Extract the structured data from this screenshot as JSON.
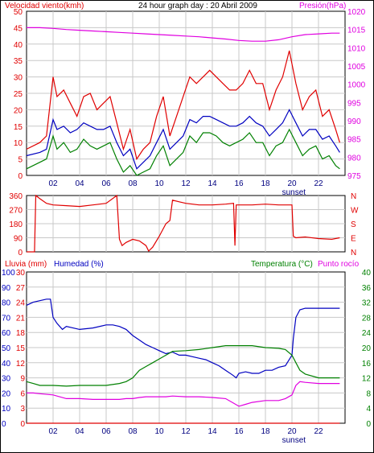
{
  "chart_data": [
    {
      "type": "line",
      "title": "24 hour graph day : 20 Abril 2009",
      "ylabel_left": "Velocidad viento(kmh)",
      "ylabel_right": "Presión(hPa)",
      "x_tick_labels": [
        "02",
        "04",
        "06",
        "08",
        "10",
        "12",
        "14",
        "16",
        "18",
        "20",
        "22"
      ],
      "x_ticks": [
        2,
        4,
        6,
        8,
        10,
        12,
        14,
        16,
        18,
        20,
        22
      ],
      "xlim": [
        0,
        24
      ],
      "ylim_left": [
        0,
        50
      ],
      "ylim_right": [
        975,
        1020
      ],
      "y_tick_labels_left": [
        "0",
        "5",
        "10",
        "15",
        "20",
        "25",
        "30",
        "35",
        "40",
        "45",
        "50"
      ],
      "y_tick_labels_right": [
        "975",
        "980",
        "985",
        "990",
        "995",
        "1000",
        "1005",
        "1010",
        "1015",
        "1020"
      ],
      "annotation": "sunset",
      "sunset_x": 19.9,
      "grid": true,
      "colors": {
        "gust": "#e00000",
        "avg": "#0000c0",
        "min": "#008000",
        "pressure": "#e000e0"
      },
      "series": [
        {
          "axis": "left",
          "color": "#e00000",
          "x": [
            0,
            1,
            1.5,
            2,
            2.3,
            2.8,
            3.3,
            3.8,
            4.3,
            4.8,
            5.3,
            5.8,
            6.3,
            6.8,
            7.3,
            7.8,
            8.3,
            8.8,
            9.3,
            9.8,
            10.3,
            10.8,
            11.3,
            11.8,
            12.3,
            12.8,
            13.3,
            13.8,
            14.3,
            14.8,
            15.3,
            15.8,
            16.3,
            16.8,
            17.3,
            17.8,
            18.3,
            18.8,
            19.3,
            19.8,
            20.3,
            20.8,
            21.3,
            21.8,
            22.3,
            22.8,
            23.3,
            23.6
          ],
          "values": [
            8,
            10,
            12,
            30,
            24,
            26,
            22,
            18,
            24,
            25,
            20,
            22,
            24,
            16,
            8,
            14,
            5,
            8,
            10,
            18,
            24,
            12,
            18,
            24,
            30,
            28,
            30,
            32,
            30,
            28,
            26,
            26,
            28,
            32,
            28,
            28,
            20,
            26,
            30,
            38,
            28,
            20,
            24,
            26,
            18,
            20,
            14,
            10
          ]
        },
        {
          "axis": "left",
          "color": "#0000c0",
          "x": [
            0,
            1,
            1.5,
            2,
            2.3,
            2.8,
            3.3,
            3.8,
            4.3,
            4.8,
            5.3,
            5.8,
            6.3,
            6.8,
            7.3,
            7.8,
            8.3,
            8.8,
            9.3,
            9.8,
            10.3,
            10.8,
            11.3,
            11.8,
            12.3,
            12.8,
            13.3,
            13.8,
            14.3,
            14.8,
            15.3,
            15.8,
            16.3,
            16.8,
            17.3,
            17.8,
            18.3,
            18.8,
            19.3,
            19.8,
            20.3,
            20.8,
            21.3,
            21.8,
            22.3,
            22.8,
            23.3,
            23.6
          ],
          "values": [
            6,
            7,
            8,
            17,
            14,
            15,
            13,
            14,
            16,
            15,
            14,
            14,
            15,
            10,
            6,
            8,
            2,
            4,
            6,
            10,
            14,
            8,
            10,
            12,
            17,
            16,
            18,
            18,
            17,
            16,
            15,
            15,
            16,
            18,
            16,
            15,
            12,
            14,
            16,
            20,
            16,
            12,
            14,
            14,
            11,
            12,
            9,
            7
          ]
        },
        {
          "axis": "left",
          "color": "#008000",
          "x": [
            0,
            1,
            1.5,
            2,
            2.3,
            2.8,
            3.3,
            3.8,
            4.3,
            4.8,
            5.3,
            5.8,
            6.3,
            6.8,
            7.3,
            7.8,
            8.3,
            8.8,
            9.3,
            9.8,
            10.3,
            10.8,
            11.3,
            11.8,
            12.3,
            12.8,
            13.3,
            13.8,
            14.3,
            14.8,
            15.3,
            15.8,
            16.3,
            16.8,
            17.3,
            17.8,
            18.3,
            18.8,
            19.3,
            19.8,
            20.3,
            20.8,
            21.3,
            21.8,
            22.3,
            22.8,
            23.3,
            23.6
          ],
          "values": [
            2,
            4,
            5,
            12,
            8,
            10,
            7,
            8,
            11,
            9,
            8,
            9,
            10,
            5,
            1,
            3,
            0,
            1,
            2,
            6,
            9,
            3,
            5,
            7,
            12,
            10,
            13,
            13,
            12,
            10,
            9,
            10,
            11,
            13,
            10,
            10,
            6,
            9,
            10,
            14,
            10,
            6,
            8,
            9,
            5,
            6,
            3,
            2
          ]
        },
        {
          "axis": "right",
          "color": "#e000e0",
          "x": [
            0,
            1,
            2,
            3,
            4,
            5,
            6,
            7,
            8,
            9,
            10,
            11,
            12,
            13,
            14,
            15,
            16,
            17,
            18,
            19,
            20,
            21,
            22,
            23,
            23.6
          ],
          "values": [
            1015.5,
            1015.5,
            1015.3,
            1015,
            1014.8,
            1014.6,
            1014.4,
            1014.2,
            1014,
            1013.8,
            1013.6,
            1013.4,
            1013.2,
            1013,
            1012.7,
            1012.4,
            1012,
            1011.8,
            1011.8,
            1012.2,
            1013,
            1013.6,
            1013.8,
            1014,
            1014
          ]
        }
      ]
    },
    {
      "type": "line",
      "ylabel_right": "N W S E N",
      "y_tick_labels_left": [
        "0",
        "90",
        "180",
        "270",
        "360"
      ],
      "y_tick_labels_right": [
        "N",
        "E",
        "S",
        "W",
        "N"
      ],
      "ylim": [
        0,
        360
      ],
      "xlim": [
        0,
        24
      ],
      "grid": true,
      "series": [
        {
          "color": "#e00000",
          "x": [
            0,
            0.6,
            0.7,
            1,
            1.5,
            2,
            3,
            4,
            5,
            6,
            6.8,
            7,
            7.2,
            7.5,
            8,
            8.5,
            9,
            9.2,
            9.5,
            10,
            10.5,
            10.8,
            11,
            11.5,
            12,
            13,
            14,
            15,
            15.6,
            15.7,
            15.8,
            16,
            17,
            18,
            19,
            20,
            20.1,
            20.3,
            21,
            22,
            23,
            23.6
          ],
          "values": [
            0,
            0,
            360,
            340,
            310,
            300,
            295,
            290,
            300,
            310,
            360,
            80,
            40,
            60,
            80,
            70,
            40,
            5,
            30,
            100,
            180,
            200,
            330,
            320,
            310,
            300,
            300,
            305,
            310,
            40,
            300,
            300,
            300,
            305,
            300,
            300,
            100,
            90,
            95,
            85,
            80,
            90
          ]
        }
      ]
    },
    {
      "type": "line",
      "ylabel_left_1": "Lluvia (mm)",
      "ylabel_left_2": "Humedad (%)",
      "ylabel_right_1": "Temperatura (°C)",
      "ylabel_right_2": "Punto rocío",
      "xlim": [
        0,
        24
      ],
      "x_tick_labels": [
        "02",
        "04",
        "06",
        "08",
        "10",
        "12",
        "14",
        "16",
        "18",
        "20",
        "22"
      ],
      "x_ticks": [
        2,
        4,
        6,
        8,
        10,
        12,
        14,
        16,
        18,
        20,
        22
      ],
      "annotation": "sunset",
      "sunset_x": 19.9,
      "rain_ticks": [
        "0",
        "2",
        "4",
        "6",
        "8",
        "10",
        "12",
        "14",
        "16",
        "18",
        "20",
        "22",
        "24",
        "26",
        "28",
        "30"
      ],
      "humidity_ticks": [
        "0",
        "10",
        "20",
        "30",
        "40",
        "50",
        "60",
        "70",
        "80",
        "90",
        "100"
      ],
      "temp_ticks": [
        "0",
        "4",
        "8",
        "12",
        "16",
        "20",
        "24",
        "28",
        "32",
        "36",
        "40"
      ],
      "temp_ticks_left": [
        "0",
        "3",
        "6",
        "9",
        "12",
        "15",
        "18",
        "21",
        "24",
        "27",
        "30"
      ],
      "grid": true,
      "series": [
        {
          "axis": "humidity",
          "color": "#0000c0",
          "x": [
            0,
            0.5,
            1,
            1.5,
            1.8,
            2,
            2.3,
            2.7,
            3,
            3.5,
            4,
            5,
            6,
            6.5,
            7,
            7.5,
            8,
            8.5,
            9,
            9.5,
            10,
            10.5,
            11,
            11.5,
            12,
            12.5,
            13,
            13.5,
            14,
            14.5,
            15,
            15.5,
            15.8,
            16,
            16.5,
            17,
            17.5,
            18,
            18.5,
            19,
            19.5,
            20,
            20.1,
            20.3,
            20.6,
            21,
            22,
            23,
            23.6
          ],
          "values": [
            78,
            80,
            81,
            82,
            82,
            70,
            66,
            62,
            64,
            63,
            62,
            63,
            65,
            65,
            64,
            62,
            58,
            55,
            52,
            50,
            48,
            46,
            47,
            45,
            45,
            44,
            43,
            42,
            40,
            38,
            35,
            32,
            30,
            33,
            34,
            33,
            33,
            35,
            35,
            37,
            38,
            45,
            56,
            70,
            75,
            76,
            76,
            76,
            76
          ]
        },
        {
          "axis": "temp",
          "color": "#008000",
          "x": [
            0,
            0.5,
            1,
            2,
            3,
            4,
            5,
            6,
            7,
            7.5,
            8,
            8.5,
            9,
            9.5,
            10,
            10.5,
            11,
            12,
            13,
            14,
            15,
            16,
            17,
            18,
            19,
            19.5,
            20,
            20.3,
            20.6,
            21,
            22,
            23,
            23.6
          ],
          "values": [
            11,
            10.5,
            10,
            10,
            9.8,
            10,
            10,
            10,
            10.5,
            11,
            12,
            14,
            15,
            16,
            17,
            18,
            19,
            19.2,
            19.5,
            20,
            20.5,
            20.5,
            20.5,
            20,
            19.8,
            19.5,
            18,
            16,
            14,
            13,
            12,
            12,
            12
          ]
        },
        {
          "axis": "temp",
          "color": "#e000e0",
          "x": [
            0,
            0.5,
            1,
            2,
            3,
            4,
            5,
            6,
            7,
            7.5,
            8,
            8.5,
            9,
            9.5,
            10,
            10.5,
            11,
            12,
            13,
            14,
            15,
            15.5,
            16,
            16.5,
            17,
            18,
            19,
            19.5,
            20,
            20.3,
            20.6,
            21,
            22,
            23,
            23.6
          ],
          "values": [
            8,
            8,
            7.8,
            7.5,
            6.5,
            6.5,
            6.3,
            6.3,
            6.3,
            6.5,
            6.5,
            6.8,
            7,
            7,
            7,
            7,
            7.2,
            7,
            7,
            6.8,
            6.5,
            5.5,
            4.5,
            5,
            5.5,
            6,
            6,
            6.5,
            7.5,
            10,
            11,
            10.8,
            10.5,
            10.5,
            10.5
          ]
        },
        {
          "axis": "rain",
          "color": "#e00000",
          "x": [
            0,
            23.6
          ],
          "values": [
            0,
            0
          ]
        }
      ]
    }
  ]
}
